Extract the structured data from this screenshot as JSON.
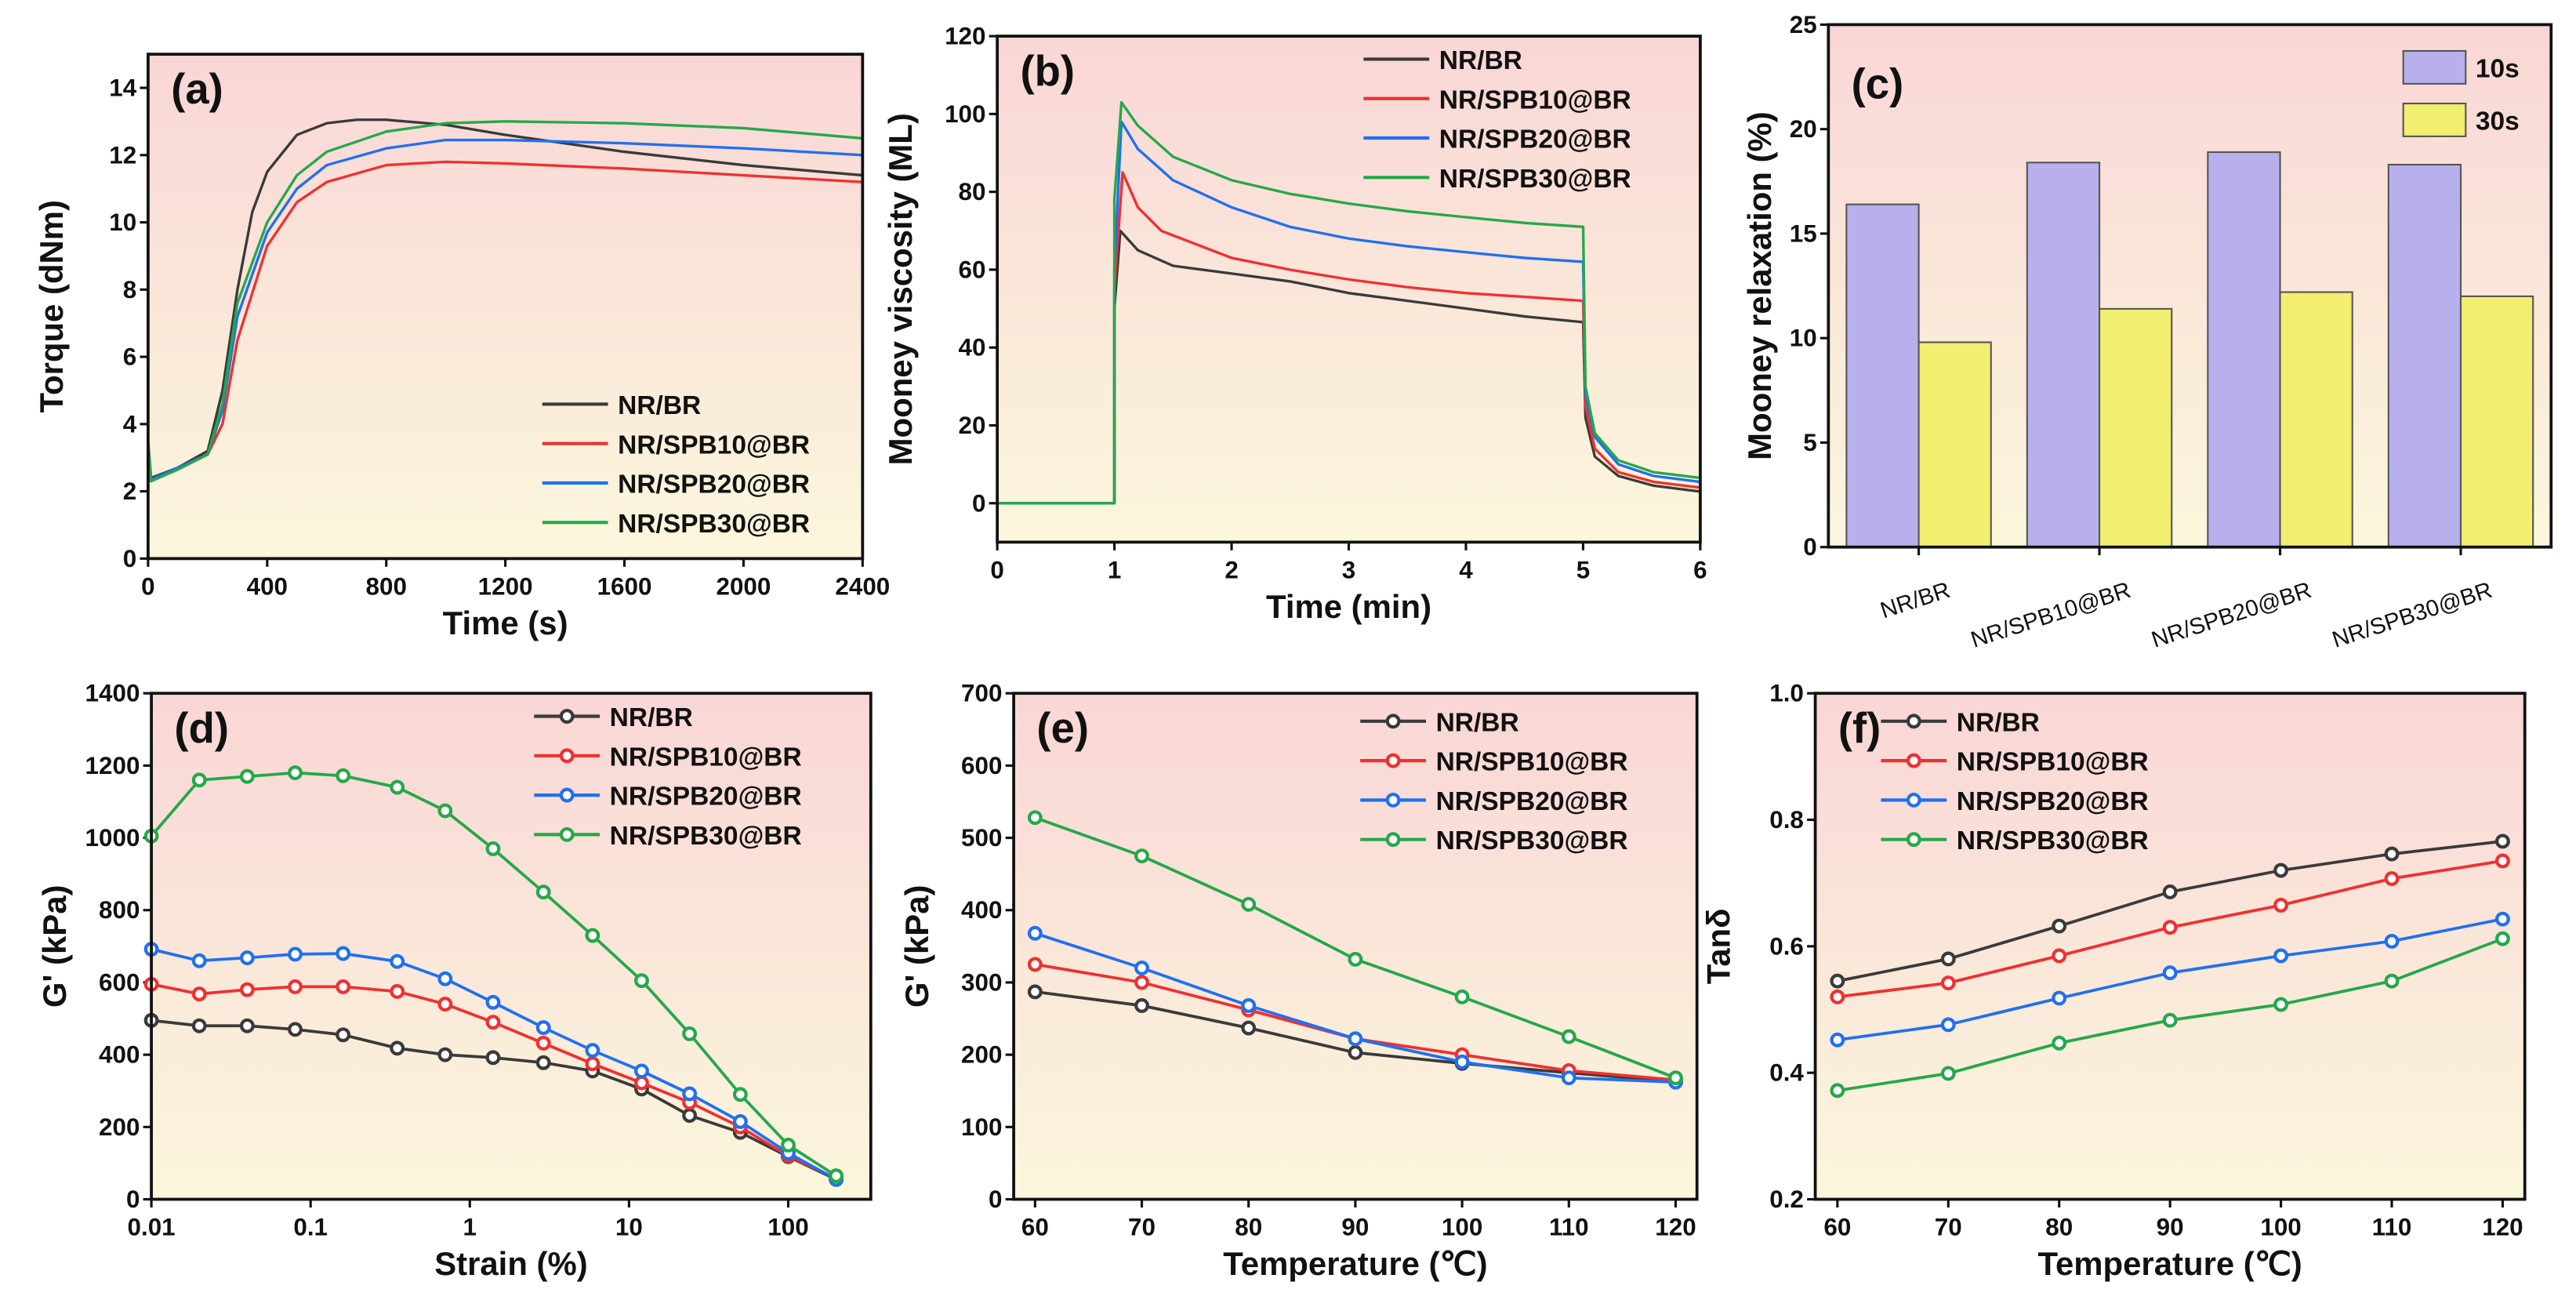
{
  "colors": {
    "NR/BR": "#3a3a3a",
    "NR/SPB10@BR": "#f03030",
    "NR/SPB20@BR": "#2070f0",
    "NR/SPB30@BR": "#25a84a",
    "10s": "#b8b0ec",
    "30s": "#f2ee70",
    "bg_top": "#f9d6d6",
    "bg_bottom": "#fbf7dc"
  },
  "chart_data": [
    {
      "panel": "(a)",
      "type": "line",
      "xlabel": "Time (s)",
      "ylabel": "Torque (dNm)",
      "xlim": [
        0,
        2400
      ],
      "ylim": [
        0,
        15
      ],
      "xticks": [
        0,
        400,
        800,
        1200,
        1600,
        2000,
        2400
      ],
      "yticks": [
        0,
        2,
        4,
        6,
        8,
        10,
        12,
        14
      ],
      "legend": "bottom-right",
      "markers": false,
      "series": [
        {
          "name": "NR/BR",
          "x": [
            0,
            10,
            100,
            200,
            250,
            300,
            350,
            400,
            500,
            600,
            700,
            800,
            1000,
            1200,
            1600,
            2000,
            2400
          ],
          "y": [
            3.5,
            2.4,
            2.7,
            3.2,
            5,
            8,
            10.3,
            11.5,
            12.6,
            12.95,
            13.05,
            13.05,
            12.9,
            12.6,
            12.1,
            11.7,
            11.4
          ]
        },
        {
          "name": "NR/SPB10@BR",
          "x": [
            0,
            10,
            100,
            200,
            250,
            300,
            400,
            500,
            600,
            800,
            1000,
            1200,
            1600,
            2000,
            2400
          ],
          "y": [
            3.3,
            2.3,
            2.7,
            3.1,
            4,
            6.5,
            9.3,
            10.6,
            11.2,
            11.7,
            11.8,
            11.75,
            11.6,
            11.4,
            11.2
          ]
        },
        {
          "name": "NR/SPB20@BR",
          "x": [
            0,
            10,
            100,
            200,
            250,
            300,
            400,
            500,
            600,
            800,
            1000,
            1200,
            1600,
            2000,
            2400
          ],
          "y": [
            3.3,
            2.35,
            2.7,
            3.1,
            4.4,
            7.2,
            9.7,
            11.0,
            11.7,
            12.2,
            12.45,
            12.45,
            12.35,
            12.2,
            12.0
          ]
        },
        {
          "name": "NR/SPB30@BR",
          "x": [
            0,
            10,
            100,
            200,
            250,
            300,
            400,
            500,
            600,
            800,
            1000,
            1200,
            1600,
            2000,
            2400
          ],
          "y": [
            3.4,
            2.3,
            2.65,
            3.1,
            4.6,
            7.6,
            10.0,
            11.4,
            12.1,
            12.7,
            12.95,
            13.0,
            12.95,
            12.8,
            12.5
          ]
        }
      ]
    },
    {
      "panel": "(b)",
      "type": "line",
      "xlabel": "Time (min)",
      "ylabel": "Mooney viscosity (ML)",
      "xlim": [
        0,
        6
      ],
      "ylim": [
        -10,
        120
      ],
      "xticks": [
        0,
        1,
        2,
        3,
        4,
        5,
        6
      ],
      "yticks": [
        0,
        20,
        40,
        60,
        80,
        100,
        120
      ],
      "legend": "top-right",
      "markers": false,
      "series": [
        {
          "name": "NR/BR",
          "x": [
            0,
            1,
            1,
            1.05,
            1.2,
            1.5,
            2,
            2.5,
            3,
            3.5,
            4,
            4.5,
            5,
            5,
            5.02,
            5.1,
            5.3,
            5.6,
            6
          ],
          "y": [
            0,
            0,
            50,
            70,
            65,
            61,
            59,
            57,
            54,
            52,
            50,
            48,
            46.5,
            46.5,
            22,
            12,
            7,
            4.5,
            3
          ]
        },
        {
          "name": "NR/SPB10@BR",
          "x": [
            0,
            1,
            1,
            1.07,
            1.2,
            1.4,
            2,
            2.5,
            3,
            3.5,
            4,
            4.5,
            5,
            5,
            5.02,
            5.1,
            5.3,
            5.6,
            6
          ],
          "y": [
            0,
            0,
            55,
            85,
            76,
            70,
            63,
            60,
            57.5,
            55.5,
            54,
            53,
            52,
            52,
            25,
            14,
            8,
            5.5,
            4
          ]
        },
        {
          "name": "NR/SPB20@BR",
          "x": [
            0,
            1,
            1,
            1.06,
            1.2,
            1.5,
            2,
            2.5,
            3,
            3.5,
            4,
            4.5,
            5,
            5,
            5.02,
            5.1,
            5.3,
            5.6,
            6
          ],
          "y": [
            0,
            0,
            60,
            98,
            91,
            83,
            76,
            71,
            68,
            66,
            64.5,
            63,
            62,
            62,
            28,
            17,
            10,
            7,
            5.5
          ]
        },
        {
          "name": "NR/SPB30@BR",
          "x": [
            0,
            1,
            1,
            1.06,
            1.2,
            1.5,
            2,
            2.5,
            3,
            3.5,
            4,
            4.5,
            5,
            5,
            5.02,
            5.1,
            5.3,
            5.6,
            6
          ],
          "y": [
            0,
            0,
            78,
            103,
            97,
            89,
            83,
            79.5,
            77,
            75,
            73.5,
            72,
            71,
            71,
            30,
            18,
            11,
            8,
            6.5
          ]
        }
      ]
    },
    {
      "panel": "(c)",
      "type": "bar",
      "xlabel": "",
      "ylabel": "Mooney relaxation (%)",
      "ylim": [
        0,
        25
      ],
      "yticks": [
        0,
        5,
        10,
        15,
        20,
        25
      ],
      "legend": "top-right",
      "categories": [
        "NR/BR",
        "NR/SPB10@BR",
        "NR/SPB20@BR",
        "NR/SPB30@BR"
      ],
      "series": [
        {
          "name": "10s",
          "values": [
            16.4,
            18.4,
            18.9,
            18.3
          ]
        },
        {
          "name": "30s",
          "values": [
            9.8,
            11.4,
            12.2,
            12.0
          ]
        }
      ]
    },
    {
      "panel": "(d)",
      "type": "line",
      "xscale": "log",
      "xlabel": "Strain (%)",
      "ylabel": "G' (kPa)",
      "xlim": [
        0.01,
        330
      ],
      "ylim": [
        0,
        1400
      ],
      "xticks": [
        0.01,
        0.1,
        1,
        10,
        100
      ],
      "xticklabels": [
        "0.01",
        "0.1",
        "1",
        "10",
        "100"
      ],
      "yticks": [
        0,
        200,
        400,
        600,
        800,
        1000,
        1200,
        1400
      ],
      "legend": "top-right",
      "markers": true,
      "x": [
        0.01,
        0.02,
        0.04,
        0.08,
        0.16,
        0.35,
        0.7,
        1.4,
        2.9,
        5.9,
        12,
        24,
        50,
        100,
        200
      ],
      "series": [
        {
          "name": "NR/BR",
          "y": [
            495,
            480,
            480,
            470,
            455,
            418,
            400,
            392,
            378,
            355,
            305,
            232,
            185,
            118,
            55
          ]
        },
        {
          "name": "NR/SPB10@BR",
          "y": [
            595,
            568,
            580,
            588,
            588,
            575,
            540,
            490,
            432,
            375,
            322,
            268,
            200,
            120,
            58
          ]
        },
        {
          "name": "NR/SPB20@BR",
          "y": [
            692,
            660,
            668,
            678,
            680,
            658,
            610,
            545,
            475,
            412,
            355,
            292,
            215,
            128,
            55
          ]
        },
        {
          "name": "NR/SPB30@BR",
          "y": [
            1005,
            1160,
            1170,
            1180,
            1172,
            1140,
            1075,
            970,
            850,
            730,
            605,
            458,
            290,
            150,
            65
          ]
        }
      ]
    },
    {
      "panel": "(e)",
      "type": "line",
      "xlabel": "Temperature (℃)",
      "ylabel": "G' (kPa)",
      "xlim": [
        58,
        122
      ],
      "ylim": [
        0,
        700
      ],
      "xticks": [
        60,
        70,
        80,
        90,
        100,
        110,
        120
      ],
      "yticks": [
        0,
        100,
        200,
        300,
        400,
        500,
        600,
        700
      ],
      "legend": "top-right",
      "markers": true,
      "x": [
        60,
        70,
        80,
        90,
        100,
        110,
        120
      ],
      "series": [
        {
          "name": "NR/BR",
          "y": [
            287,
            268,
            237,
            203,
            188,
            175,
            163
          ]
        },
        {
          "name": "NR/SPB10@BR",
          "y": [
            325,
            300,
            262,
            222,
            200,
            178,
            165
          ]
        },
        {
          "name": "NR/SPB20@BR",
          "y": [
            368,
            320,
            268,
            222,
            190,
            168,
            162
          ]
        },
        {
          "name": "NR/SPB30@BR",
          "y": [
            528,
            475,
            408,
            332,
            280,
            225,
            168
          ]
        }
      ]
    },
    {
      "panel": "(f)",
      "type": "line",
      "xlabel": "Temperature (℃)",
      "ylabel": "Tanδ",
      "xlim": [
        58,
        122
      ],
      "ylim": [
        0.2,
        1.0
      ],
      "xticks": [
        60,
        70,
        80,
        90,
        100,
        110,
        120
      ],
      "yticks": [
        0.2,
        0.4,
        0.6,
        0.8,
        1.0
      ],
      "yticklabels": [
        "0.2",
        "0.4",
        "0.6",
        "0.8",
        "1.0"
      ],
      "legend": "top-left",
      "markers": true,
      "x": [
        60,
        70,
        80,
        90,
        100,
        110,
        120
      ],
      "series": [
        {
          "name": "NR/BR",
          "y": [
            0.545,
            0.58,
            0.632,
            0.686,
            0.72,
            0.746,
            0.766
          ]
        },
        {
          "name": "NR/SPB10@BR",
          "y": [
            0.52,
            0.542,
            0.585,
            0.63,
            0.665,
            0.707,
            0.735
          ]
        },
        {
          "name": "NR/SPB20@BR",
          "y": [
            0.452,
            0.476,
            0.518,
            0.558,
            0.585,
            0.608,
            0.643
          ]
        },
        {
          "name": "NR/SPB30@BR",
          "y": [
            0.372,
            0.399,
            0.447,
            0.483,
            0.508,
            0.545,
            0.612
          ]
        }
      ]
    }
  ]
}
